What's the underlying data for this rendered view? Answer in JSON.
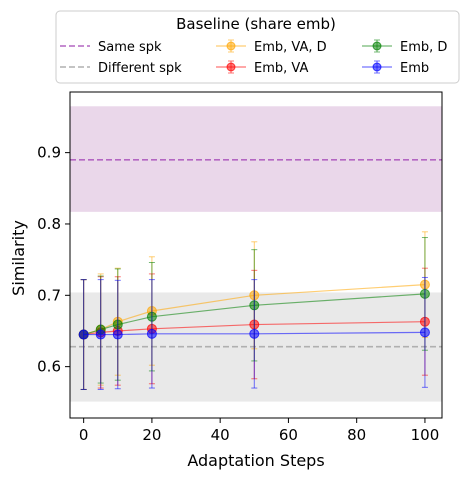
{
  "chart_data": {
    "type": "line",
    "title": "",
    "xlabel": "Adaptation Steps",
    "ylabel": "Similarity",
    "xlim": [
      -4,
      105
    ],
    "ylim": [
      0.528,
      0.985
    ],
    "xticks": [
      0,
      20,
      40,
      60,
      80,
      100
    ],
    "yticks": [
      0.6,
      0.7,
      0.8,
      0.9
    ],
    "grid": false,
    "legend": {
      "title": "Baseline (share emb)",
      "placement": "top, above plot",
      "columns": 3
    },
    "reference_lines": [
      {
        "name": "Same spk",
        "y": 0.89,
        "band": [
          0.817,
          0.965
        ],
        "color": "#b366c2",
        "band_color": "#ead7ea"
      },
      {
        "name": "Different spk",
        "y": 0.628,
        "band": [
          0.551,
          0.704
        ],
        "color": "#b0b0b0",
        "band_color": "#e9e9e9"
      }
    ],
    "x": [
      0,
      5,
      10,
      20,
      50,
      100
    ],
    "series": [
      {
        "name": "Emb, VA, D",
        "color": "#ffa500",
        "values": [
          0.645,
          0.652,
          0.663,
          0.678,
          0.7,
          0.715
        ],
        "err": [
          0.077,
          0.078,
          0.075,
          0.076,
          0.075,
          0.074
        ]
      },
      {
        "name": "Emb, VA",
        "color": "#ff0000",
        "values": [
          0.645,
          0.648,
          0.65,
          0.653,
          0.659,
          0.663
        ],
        "err": [
          0.077,
          0.078,
          0.076,
          0.077,
          0.076,
          0.075
        ]
      },
      {
        "name": "Emb, D",
        "color": "#008000",
        "values": [
          0.645,
          0.652,
          0.659,
          0.67,
          0.686,
          0.702
        ],
        "err": [
          0.077,
          0.075,
          0.078,
          0.076,
          0.078,
          0.079
        ]
      },
      {
        "name": "Emb",
        "color": "#0000ff",
        "values": [
          0.645,
          0.645,
          0.645,
          0.646,
          0.646,
          0.648
        ],
        "err": [
          0.077,
          0.077,
          0.076,
          0.076,
          0.076,
          0.077
        ]
      }
    ]
  }
}
